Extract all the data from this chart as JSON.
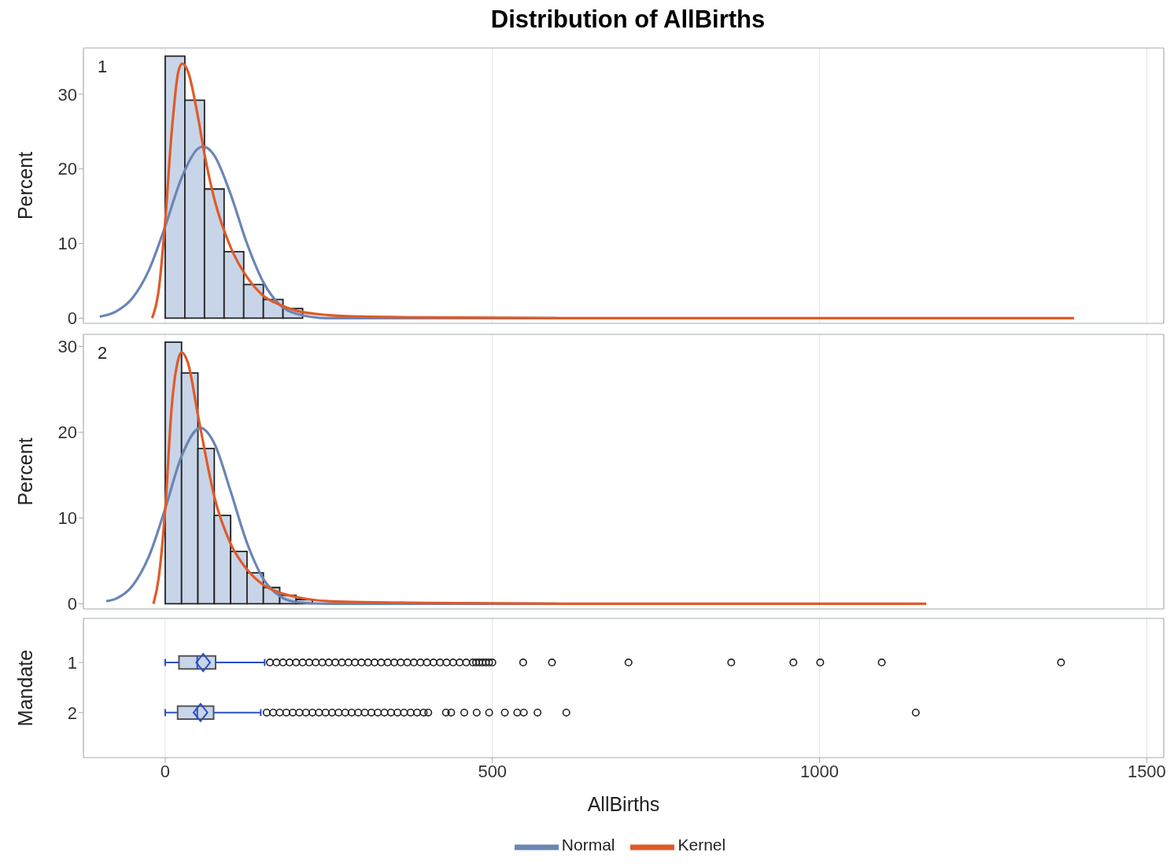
{
  "chart_data": [
    {
      "type": "histogram",
      "title": "Distribution of AllBirths",
      "ylabel": "Percent",
      "annotations": [
        "1"
      ],
      "bins": [
        0,
        30,
        60,
        90,
        120,
        150,
        180,
        210
      ],
      "values": [
        35.1,
        29.2,
        17.3,
        8.9,
        4.5,
        2.5,
        1.3
      ],
      "color": "#c8d5e8",
      "xlim": [
        -125,
        1526
      ],
      "xticks": [
        0,
        500,
        1000,
        1500
      ],
      "ylim": [
        -0.7,
        36.2
      ],
      "yticks": [
        0,
        10,
        20,
        30
      ],
      "grid": "x",
      "tick_labels": "y",
      "series": [
        {
          "type": "line",
          "color": "#6a86b4",
          "x": [
            -100,
            -75,
            -50,
            -25,
            0,
            25,
            50,
            58,
            75,
            100,
            125,
            150,
            175,
            200,
            250,
            300,
            400,
            600
          ],
          "values": [
            0.2,
            0.9,
            2.7,
            6.4,
            12.3,
            18.8,
            22.7,
            23,
            21.8,
            16.6,
            10,
            4.8,
            1.8,
            0.6,
            0,
            0,
            0,
            0
          ]
        },
        {
          "type": "line",
          "color": "#e05a28",
          "x": [
            -20,
            -10,
            0,
            10,
            20,
            26,
            35,
            50,
            60,
            75,
            100,
            125,
            150,
            175,
            200,
            250,
            300,
            400,
            600,
            1000,
            1389
          ],
          "values": [
            0,
            3.7,
            13,
            25,
            33,
            34.1,
            33,
            27,
            22,
            16,
            9.5,
            5.5,
            3,
            1.8,
            1,
            0.4,
            0.2,
            0.1,
            0,
            0,
            0
          ]
        }
      ]
    },
    {
      "type": "histogram",
      "ylabel": "Percent",
      "annotations": [
        "2"
      ],
      "bins": [
        0,
        25,
        50,
        75,
        100,
        125,
        150,
        175,
        200,
        225
      ],
      "values": [
        30.5,
        26.9,
        18.1,
        10.3,
        6.1,
        3.6,
        1.9,
        1,
        0.5
      ],
      "color": "#c8d5e8",
      "xlim": [
        -125,
        1526
      ],
      "xticks": [
        0,
        500,
        1000,
        1500
      ],
      "ylim": [
        -0.6,
        31.4
      ],
      "yticks": [
        0,
        10,
        20,
        30
      ],
      "grid": "x",
      "tick_labels": "y",
      "legend": "bottom",
      "series": [
        {
          "type": "line",
          "name": "Normal",
          "color": "#6a86b4",
          "x": [
            -90,
            -75,
            -50,
            -25,
            0,
            25,
            54,
            75,
            100,
            125,
            150,
            175,
            200,
            250,
            300,
            400,
            600
          ],
          "values": [
            0.3,
            0.6,
            2.1,
            5.5,
            11.1,
            17.2,
            20.5,
            18.7,
            13.1,
            7.1,
            2.9,
            0.9,
            0.2,
            0,
            0,
            0,
            0
          ]
        },
        {
          "type": "line",
          "name": "Kernel",
          "color": "#e05a28",
          "x": [
            -18,
            -10,
            0,
            10,
            20,
            25,
            35,
            50,
            60,
            75,
            100,
            125,
            150,
            175,
            200,
            250,
            300,
            400,
            600,
            1163
          ],
          "values": [
            0,
            3,
            11,
            23,
            28.5,
            29.3,
            28,
            22,
            18,
            12.5,
            7,
            4,
            2.2,
            1.3,
            0.8,
            0.3,
            0.2,
            0.1,
            0,
            0
          ]
        }
      ]
    },
    {
      "type": "box",
      "orientation": "horizontal",
      "xlabel": "AllBirths",
      "ylabel": "Mandate",
      "categories": [
        "1",
        "2"
      ],
      "color": "#c8d5e8",
      "xlim": [
        -125,
        1526
      ],
      "xticks": [
        0,
        500,
        1000,
        1500
      ],
      "grid": "x",
      "boxes": [
        {
          "low": 0,
          "q1": 21,
          "median": 49,
          "q3": 77,
          "high": 152,
          "mean": 58,
          "outliers": [
            160,
            170,
            180,
            190,
            200,
            210,
            220,
            230,
            240,
            250,
            260,
            270,
            280,
            290,
            300,
            310,
            320,
            330,
            340,
            350,
            360,
            370,
            380,
            390,
            400,
            410,
            420,
            430,
            440,
            450,
            460,
            470,
            475,
            480,
            485,
            490,
            495,
            500,
            547,
            591,
            708,
            865,
            960,
            1001,
            1095,
            1369
          ]
        },
        {
          "low": 0,
          "q1": 19,
          "median": 49,
          "q3": 74,
          "high": 146,
          "mean": 54,
          "outliers": [
            155,
            165,
            175,
            185,
            195,
            205,
            215,
            225,
            235,
            245,
            255,
            265,
            275,
            285,
            295,
            305,
            315,
            325,
            335,
            345,
            355,
            365,
            375,
            385,
            395,
            402,
            429,
            437,
            457,
            476,
            495,
            519,
            538,
            548,
            569,
            613,
            1147
          ]
        }
      ]
    }
  ]
}
